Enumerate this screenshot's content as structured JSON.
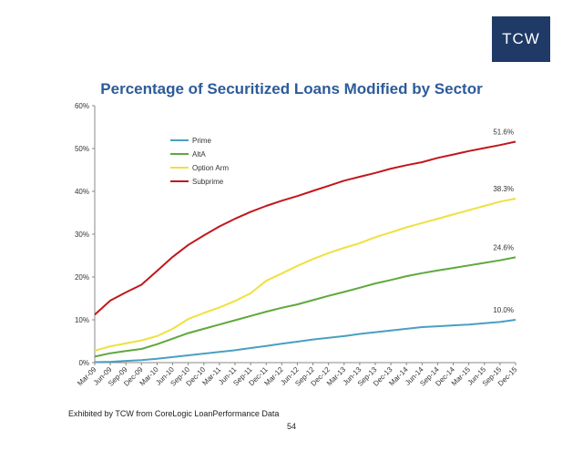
{
  "logo": {
    "text": "TCW"
  },
  "footer": {
    "source": "Exhibited by TCW from CoreLogic LoanPerformance Data",
    "page": "54"
  },
  "chart_data": {
    "type": "line",
    "title": "Percentage of Securitized Loans Modified by Sector",
    "xlabel": "",
    "ylabel": "",
    "ylim": [
      0,
      60
    ],
    "y_ticks": [
      "0%",
      "10%",
      "20%",
      "30%",
      "40%",
      "50%",
      "60%"
    ],
    "y_tick_values": [
      0,
      10,
      20,
      30,
      40,
      50,
      60
    ],
    "grid": false,
    "legend_position": "top-left",
    "categories": [
      "Mar-09",
      "Jun-09",
      "Sep-09",
      "Dec-09",
      "Mar-10",
      "Jun-10",
      "Sep-10",
      "Dec-10",
      "Mar-11",
      "Jun-11",
      "Sep-11",
      "Dec-11",
      "Mar-12",
      "Jun-12",
      "Sep-12",
      "Dec-12",
      "Mar-13",
      "Jun-13",
      "Sep-13",
      "Dec-13",
      "Mar-14",
      "Jun-14",
      "Sep-14",
      "Dec-14",
      "Mar-15",
      "Jun-15",
      "Sep-15",
      "Dec-15"
    ],
    "series": [
      {
        "name": "Prime",
        "color": "#4a9fc2",
        "end_label": "10.0%",
        "values": [
          0.1,
          0.2,
          0.4,
          0.6,
          0.9,
          1.3,
          1.7,
          2.1,
          2.5,
          2.9,
          3.4,
          3.9,
          4.4,
          4.9,
          5.4,
          5.8,
          6.2,
          6.7,
          7.1,
          7.5,
          7.9,
          8.3,
          8.5,
          8.7,
          8.9,
          9.2,
          9.5,
          10.0
        ]
      },
      {
        "name": "AltA",
        "color": "#5fa83c",
        "end_label": "24.6%",
        "values": [
          1.4,
          2.2,
          2.7,
          3.2,
          4.3,
          5.6,
          6.9,
          7.9,
          8.9,
          9.9,
          10.9,
          11.9,
          12.8,
          13.6,
          14.6,
          15.6,
          16.5,
          17.5,
          18.5,
          19.3,
          20.2,
          20.9,
          21.5,
          22.1,
          22.7,
          23.3,
          23.9,
          24.6
        ]
      },
      {
        "name": "Option Arm",
        "color": "#f0e040",
        "end_label": "38.3%",
        "values": [
          2.8,
          3.8,
          4.5,
          5.2,
          6.2,
          7.9,
          10.2,
          11.6,
          12.9,
          14.4,
          16.2,
          19.1,
          20.8,
          22.6,
          24.2,
          25.6,
          26.8,
          27.9,
          29.3,
          30.4,
          31.6,
          32.6,
          33.6,
          34.6,
          35.6,
          36.6,
          37.6,
          38.3
        ]
      },
      {
        "name": "Subprime",
        "color": "#c0181c",
        "end_label": "51.6%",
        "values": [
          11.2,
          14.5,
          16.4,
          18.2,
          21.4,
          24.7,
          27.5,
          29.7,
          31.8,
          33.6,
          35.2,
          36.6,
          37.8,
          38.9,
          40.1,
          41.3,
          42.5,
          43.4,
          44.3,
          45.3,
          46.1,
          46.8,
          47.8,
          48.6,
          49.4,
          50.1,
          50.8,
          51.6
        ]
      }
    ]
  }
}
